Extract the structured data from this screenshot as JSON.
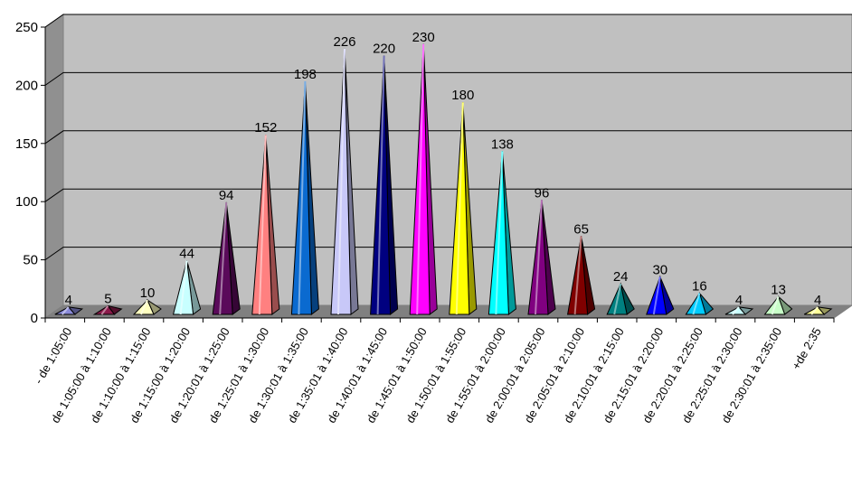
{
  "chart_data": {
    "type": "bar",
    "bar_shape": "pyramid",
    "style": "3d",
    "grid": true,
    "legend": "none",
    "title": "",
    "xlabel": "",
    "ylabel": "",
    "ylim": [
      0,
      250
    ],
    "yticks": [
      "0",
      "50",
      "100",
      "150",
      "200",
      "250"
    ],
    "categories": [
      "- de 1:05:00",
      "de 1:05:00 à 1:10:00",
      "de 1:10:00 à 1:15:00",
      "de 1:15:00 à 1:20:00",
      "de 1:20:01 à 1:25:00",
      "de 1:25:01 à 1:30:00",
      "de 1:30:01 à 1:35:00",
      "de 1:35:01 à 1:40:00",
      "de 1:40:01 à 1:45:00",
      "de 1:45:01 à 1:50:00",
      "de 1:50:01 à 1:55:00",
      "de 1:55:01 à 2:00:00",
      "de 2:00:01 à 2:05:00",
      "de 2:05:01 à 2:10:00",
      "de 2:10:01 à 2:15:00",
      "de 2:15:01 à 2:20:00",
      "de 2:20:01 à 2:25:00",
      "de 2:25:01 à 2:30:00",
      "de 2:30:01 à 2:35:00",
      "+de 2:35"
    ],
    "values": [
      4,
      5,
      10,
      44,
      94,
      152,
      198,
      226,
      220,
      230,
      180,
      138,
      96,
      65,
      24,
      30,
      16,
      4,
      13,
      4
    ],
    "data_labels": [
      "4",
      "5",
      "10",
      "44",
      "94",
      "152",
      "198",
      "226",
      "220",
      "230",
      "180",
      "138",
      "96",
      "65",
      "24",
      "30",
      "16",
      "4",
      "13",
      "4"
    ],
    "colors": [
      "#8a8ad8",
      "#8a1a4a",
      "#ffffc0",
      "#c8ffff",
      "#5a0a5a",
      "#ff8080",
      "#0a6ad0",
      "#c8c8f8",
      "#000080",
      "#ff00ff",
      "#ffff00",
      "#00ffff",
      "#800080",
      "#800000",
      "#008080",
      "#0000ff",
      "#00ccff",
      "#c8ffff",
      "#c8ffc8",
      "#ffff99"
    ],
    "wall_color": "#c0c0c0",
    "floor_color": "#808080"
  }
}
